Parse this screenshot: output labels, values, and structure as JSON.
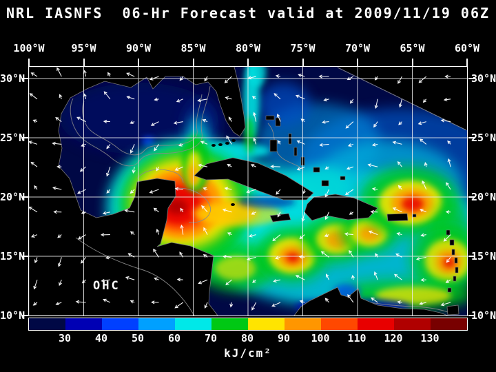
{
  "title": "NRL IASNFS  06-Hr Forecast valid at 2009/11/19 06Z",
  "map": {
    "region_label": "OHC",
    "lon_ticks": [
      "100°W",
      "95°W",
      "90°W",
      "85°W",
      "80°W",
      "75°W",
      "70°W",
      "65°W",
      "60°W"
    ],
    "lat_ticks_left": [
      "30°N",
      "25°N",
      "20°N",
      "15°N",
      "10°N"
    ],
    "lat_ticks_right": [
      "30°N",
      "25°N",
      "20°N",
      "15°N",
      "10°N"
    ]
  },
  "colorbar": {
    "tick_labels": [
      "30",
      "40",
      "50",
      "60",
      "70",
      "80",
      "90",
      "100",
      "110",
      "120",
      "130"
    ],
    "unit": "kJ/cm²",
    "segment_colors": [
      "#000845",
      "#0000b4",
      "#0040ff",
      "#00a0ff",
      "#00e8e8",
      "#00c814",
      "#ffe400",
      "#ff9600",
      "#ff4800",
      "#e80000",
      "#b00000",
      "#780000"
    ]
  },
  "vectors": {
    "color": "#ffffff",
    "description": "surface current vector arrows"
  },
  "chart_data": {
    "type": "heatmap",
    "variable": "Ocean Heat Content (OHC)",
    "units": "kJ/cm²",
    "value_range": [
      30,
      130
    ],
    "lon_range_deg_w": [
      100,
      60
    ],
    "lat_range_deg_n": [
      10,
      31
    ],
    "grid_interval_deg": 5,
    "overlays": [
      "white surface vector arrows",
      "gray bathymetry/coast contours",
      "white 5-degree lat/lon grid"
    ],
    "notable_features": [
      {
        "region": "Gulf of Mexico interior",
        "approx_value": "< 30"
      },
      {
        "region": "NW Caribbean / Yucatan Basin warm core (~86W,19N)",
        "approx_value": "110-130"
      },
      {
        "region": "Central Caribbean background",
        "approx_value": "60-80"
      },
      {
        "region": "Warm eddies near 76W 15N, 72W 16N, 69W 17N",
        "approx_value": "90-110"
      },
      {
        "region": "Atlantic warm eddy near 65W 19.5N",
        "approx_value": "100-120"
      },
      {
        "region": "Warm area near Lesser Antilles 61W 14N",
        "approx_value": "90-110"
      },
      {
        "region": "Gulf Stream / Straits of Florida band",
        "approx_value": "60-80"
      },
      {
        "region": "NE corner beyond model domain",
        "approx_value": "no data (black)"
      }
    ]
  }
}
